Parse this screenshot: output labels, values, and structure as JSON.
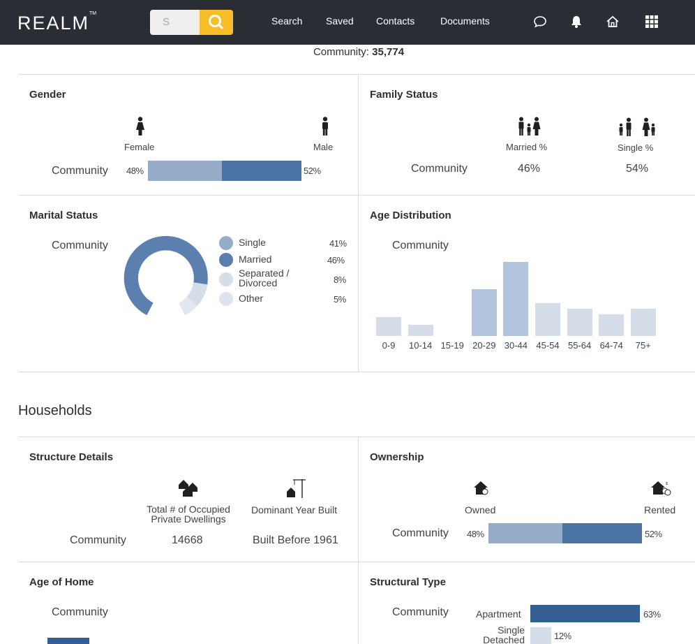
{
  "header": {
    "brand": "REALM",
    "trademark": "TM",
    "search_placeholder": "S",
    "nav": [
      "Search",
      "Saved",
      "Contacts",
      "Documents"
    ],
    "icons": [
      "chat-icon",
      "bell-icon",
      "home-icon",
      "apps-grid-icon"
    ]
  },
  "community_total": {
    "label": "Community:",
    "value": "35,774"
  },
  "gender": {
    "title": "Gender",
    "female_label": "Female",
    "male_label": "Male",
    "row_label": "Community",
    "female_pct": "48%",
    "male_pct": "52%",
    "female_value": 48,
    "male_value": 52
  },
  "family_status": {
    "title": "Family Status",
    "married_label": "Married %",
    "single_label": "Single %",
    "row_label": "Community",
    "married_value": "46%",
    "single_value": "54%"
  },
  "marital_status": {
    "title": "Marital Status",
    "row_label": "Community",
    "legend": [
      {
        "label": "Single",
        "value": "41%",
        "color": "#97acc8"
      },
      {
        "label": "Married",
        "value": "46%",
        "color": "#5b7fae"
      },
      {
        "label": "Separated / Divorced",
        "value": "8%",
        "color": "#d5dde9"
      },
      {
        "label": "Other",
        "value": "5%",
        "color": "#dde3ed"
      }
    ],
    "separated_line1": "Separated /",
    "separated_line2": "Divorced"
  },
  "chart_data": {
    "type": "bar",
    "title": "Age Distribution",
    "series_label": "Community",
    "categories": [
      "0-9",
      "10-14",
      "15-19",
      "20-29",
      "30-44",
      "45-54",
      "55-64",
      "64-74",
      "75+"
    ],
    "values": [
      7,
      4,
      0,
      17,
      27,
      12,
      10,
      8,
      10
    ],
    "colors": [
      "#d5dde9",
      "#d5dde9",
      "#d5dde9",
      "#b2c4db",
      "#b2c4db",
      "#d5dde9",
      "#d5dde9",
      "#d5dde9",
      "#d5dde9"
    ]
  },
  "households": {
    "heading": "Households",
    "structure": {
      "title": "Structure Details",
      "occupied_label_1": "Total # of Occupied",
      "occupied_label_2": "Private Dwellings",
      "year_label": "Dominant Year Built",
      "row_label": "Community",
      "occupied_value": "14668",
      "year_value": "Built Before 1961"
    },
    "ownership": {
      "title": "Ownership",
      "owned_label": "Owned",
      "rented_label": "Rented",
      "row_label": "Community",
      "owned_pct": "48%",
      "rented_pct": "52%",
      "owned_value": 48,
      "rented_value": 52
    },
    "age_of_home": {
      "title": "Age of Home",
      "row_label": "Community"
    },
    "structural_type": {
      "title": "Structural Type",
      "row_label": "Community",
      "apartment_label": "Apartment",
      "apartment_pct": "63%",
      "apartment_value": 63,
      "single_label_1": "Single",
      "single_label_2": "Detached",
      "single_pct": "12%",
      "single_value": 12
    }
  }
}
